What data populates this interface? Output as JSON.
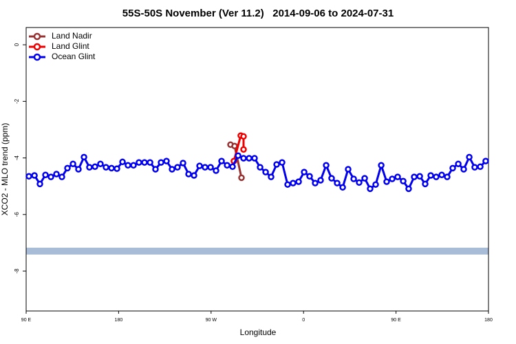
{
  "chart_data": {
    "type": "line",
    "title": "55S-50S November (Ver 11.2)   2014-09-06 to 2024-07-31",
    "x_label": "Longitude",
    "y_label": "XCO2 - MLO trend (ppm)",
    "xlim": [
      90,
      540
    ],
    "xticks": [
      {
        "value": 90,
        "label": "90 E"
      },
      180,
      {
        "value": 270,
        "label": "90 W"
      },
      {
        "value": 360,
        "label": "0"
      },
      {
        "value": 450,
        "label": "90 E"
      },
      {
        "value": 540,
        "label": "180"
      }
    ],
    "ylim": [
      -9.41,
      0.61
    ],
    "yticks": [
      0,
      -2,
      -4,
      -6,
      -8
    ],
    "legend": "top-left",
    "series": [
      {
        "name": "Land Nadir",
        "color": "#993333",
        "x": [
          288.9,
          292.9,
          299.6
        ],
        "values": [
          -3.53,
          -3.58,
          -4.7
        ]
      },
      {
        "name": "Land Glint",
        "color": "#ee0000",
        "x": [
          292.2,
          298.9,
          301.6,
          301.6
        ],
        "values": [
          -4.11,
          -3.21,
          -3.24,
          -3.7
        ]
      },
      {
        "name": "Ocean Glint",
        "color": "#0000ee",
        "x": [
          92.7,
          98.1,
          103.4,
          108.8,
          114.1,
          119.5,
          124.8,
          130.2,
          135.6,
          140.9,
          146.3,
          151.6,
          157.0,
          162.3,
          167.7,
          173.1,
          178.4,
          183.8,
          189.1,
          194.5,
          199.8,
          205.2,
          210.6,
          215.9,
          221.3,
          226.6,
          232.0,
          237.3,
          242.7,
          248.1,
          253.4,
          258.8,
          264.1,
          269.5,
          274.8,
          280.2,
          285.6,
          290.9,
          296.3,
          301.6,
          307.0,
          312.3,
          317.7,
          323.1,
          328.4,
          333.8,
          339.1,
          344.5,
          349.8,
          355.2,
          360.6,
          365.9,
          371.3,
          376.6,
          382.0,
          387.3,
          392.7,
          398.1,
          403.4,
          408.8,
          414.1,
          419.5,
          424.8,
          430.2,
          435.6,
          440.9,
          446.3,
          451.6,
          457.0,
          462.3,
          467.7,
          473.1,
          478.4,
          483.8,
          489.1,
          494.5,
          499.8,
          505.2,
          510.6,
          515.9,
          521.3,
          526.6,
          532.0,
          537.3
        ],
        "values": [
          -4.65,
          -4.62,
          -4.92,
          -4.6,
          -4.67,
          -4.57,
          -4.67,
          -4.36,
          -4.21,
          -4.4,
          -3.97,
          -4.33,
          -4.31,
          -4.21,
          -4.33,
          -4.36,
          -4.38,
          -4.14,
          -4.26,
          -4.26,
          -4.16,
          -4.16,
          -4.16,
          -4.4,
          -4.16,
          -4.11,
          -4.4,
          -4.33,
          -4.18,
          -4.57,
          -4.62,
          -4.28,
          -4.33,
          -4.33,
          -4.45,
          -4.11,
          -4.26,
          -4.31,
          -3.92,
          -4.01,
          -4.01,
          -4.01,
          -4.33,
          -4.5,
          -4.67,
          -4.23,
          -4.16,
          -4.94,
          -4.89,
          -4.84,
          -4.5,
          -4.65,
          -4.89,
          -4.79,
          -4.26,
          -4.72,
          -4.89,
          -5.04,
          -4.4,
          -4.74,
          -4.87,
          -4.72,
          -5.09,
          -4.94,
          -4.26,
          -4.84,
          -4.74,
          -4.67,
          -4.82,
          -5.09,
          -4.67,
          -4.65,
          -4.92,
          -4.62,
          -4.67,
          -4.6,
          -4.67,
          -4.36,
          -4.21,
          -4.4,
          -3.97,
          -4.33,
          -4.31,
          -4.11
        ]
      }
    ]
  }
}
